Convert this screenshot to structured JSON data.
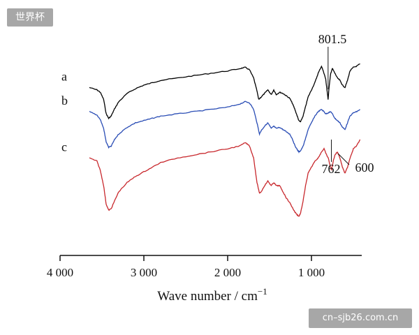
{
  "watermark_top": "世界杯",
  "watermark_bottom": "cn–sjb26.com.cn",
  "chart_data": {
    "type": "line",
    "xlabel": "Wave number / cm",
    "xlabel_sup": "−1",
    "xlim": [
      4000,
      400
    ],
    "x_ticks": [
      4000,
      3000,
      2000,
      1000
    ],
    "x_tick_labels": [
      "4 000",
      "3 000",
      "2 000",
      "1 000"
    ],
    "grid": false,
    "series": [
      {
        "name": "a",
        "color": "#000000",
        "points": [
          [
            3650,
            38
          ],
          [
            3560,
            36
          ],
          [
            3520,
            34
          ],
          [
            3480,
            28
          ],
          [
            3450,
            16
          ],
          [
            3420,
            12
          ],
          [
            3390,
            14
          ],
          [
            3350,
            20
          ],
          [
            3300,
            26
          ],
          [
            3200,
            33
          ],
          [
            3100,
            37
          ],
          [
            3000,
            40
          ],
          [
            2900,
            42
          ],
          [
            2800,
            44
          ],
          [
            2600,
            46
          ],
          [
            2400,
            48
          ],
          [
            2200,
            50
          ],
          [
            2000,
            52
          ],
          [
            1850,
            54
          ],
          [
            1790,
            55
          ],
          [
            1740,
            53
          ],
          [
            1690,
            46
          ],
          [
            1650,
            35
          ],
          [
            1630,
            28
          ],
          [
            1600,
            30
          ],
          [
            1560,
            33
          ],
          [
            1520,
            36
          ],
          [
            1480,
            32
          ],
          [
            1450,
            36
          ],
          [
            1420,
            32
          ],
          [
            1380,
            34
          ],
          [
            1340,
            33
          ],
          [
            1300,
            31
          ],
          [
            1260,
            29
          ],
          [
            1230,
            25
          ],
          [
            1200,
            20
          ],
          [
            1170,
            14
          ],
          [
            1150,
            10
          ],
          [
            1130,
            9
          ],
          [
            1100,
            14
          ],
          [
            1070,
            22
          ],
          [
            1040,
            30
          ],
          [
            1000,
            36
          ],
          [
            960,
            42
          ],
          [
            920,
            50
          ],
          [
            880,
            56
          ],
          [
            850,
            50
          ],
          [
            830,
            45
          ],
          [
            815,
            36
          ],
          [
            801.5,
            28
          ],
          [
            790,
            38
          ],
          [
            770,
            50
          ],
          [
            750,
            54
          ],
          [
            720,
            50
          ],
          [
            690,
            46
          ],
          [
            660,
            44
          ],
          [
            630,
            40
          ],
          [
            600,
            38
          ],
          [
            570,
            44
          ],
          [
            540,
            52
          ],
          [
            500,
            55
          ],
          [
            460,
            56
          ],
          [
            420,
            58
          ]
        ]
      },
      {
        "name": "b",
        "color": "#2a4db5",
        "points": [
          [
            3650,
            40
          ],
          [
            3560,
            37
          ],
          [
            3520,
            33
          ],
          [
            3480,
            25
          ],
          [
            3450,
            13
          ],
          [
            3420,
            8
          ],
          [
            3390,
            9
          ],
          [
            3350,
            15
          ],
          [
            3300,
            20
          ],
          [
            3200,
            26
          ],
          [
            3100,
            30
          ],
          [
            3000,
            32
          ],
          [
            2900,
            34
          ],
          [
            2800,
            36
          ],
          [
            2600,
            38
          ],
          [
            2400,
            40
          ],
          [
            2200,
            42
          ],
          [
            2000,
            44
          ],
          [
            1850,
            47
          ],
          [
            1790,
            49
          ],
          [
            1740,
            48
          ],
          [
            1690,
            42
          ],
          [
            1650,
            30
          ],
          [
            1620,
            20
          ],
          [
            1600,
            23
          ],
          [
            1560,
            27
          ],
          [
            1520,
            30
          ],
          [
            1480,
            25
          ],
          [
            1450,
            27
          ],
          [
            1420,
            25
          ],
          [
            1380,
            26
          ],
          [
            1340,
            24
          ],
          [
            1300,
            22
          ],
          [
            1260,
            20
          ],
          [
            1230,
            16
          ],
          [
            1200,
            10
          ],
          [
            1170,
            6
          ],
          [
            1150,
            4
          ],
          [
            1130,
            5
          ],
          [
            1100,
            9
          ],
          [
            1070,
            16
          ],
          [
            1040,
            24
          ],
          [
            1000,
            30
          ],
          [
            960,
            36
          ],
          [
            920,
            40
          ],
          [
            880,
            42
          ],
          [
            850,
            40
          ],
          [
            830,
            38
          ],
          [
            800,
            39
          ],
          [
            770,
            40
          ],
          [
            750,
            38
          ],
          [
            720,
            34
          ],
          [
            690,
            32
          ],
          [
            660,
            30
          ],
          [
            630,
            26
          ],
          [
            600,
            24
          ],
          [
            570,
            30
          ],
          [
            540,
            36
          ],
          [
            500,
            39
          ],
          [
            460,
            40
          ],
          [
            420,
            42
          ]
        ]
      },
      {
        "name": "c",
        "color": "#c8282d",
        "points": [
          [
            3650,
            38
          ],
          [
            3560,
            36
          ],
          [
            3520,
            30
          ],
          [
            3480,
            20
          ],
          [
            3450,
            8
          ],
          [
            3420,
            4
          ],
          [
            3390,
            5
          ],
          [
            3350,
            10
          ],
          [
            3300,
            16
          ],
          [
            3200,
            22
          ],
          [
            3100,
            26
          ],
          [
            3000,
            29
          ],
          [
            2900,
            32
          ],
          [
            2800,
            35
          ],
          [
            2600,
            38
          ],
          [
            2400,
            40
          ],
          [
            2200,
            42
          ],
          [
            2000,
            44
          ],
          [
            1850,
            46
          ],
          [
            1790,
            48
          ],
          [
            1740,
            46
          ],
          [
            1690,
            38
          ],
          [
            1650,
            22
          ],
          [
            1620,
            15
          ],
          [
            1600,
            16
          ],
          [
            1560,
            20
          ],
          [
            1520,
            23
          ],
          [
            1480,
            20
          ],
          [
            1450,
            22
          ],
          [
            1420,
            20
          ],
          [
            1380,
            20
          ],
          [
            1340,
            16
          ],
          [
            1300,
            12
          ],
          [
            1260,
            9
          ],
          [
            1230,
            6
          ],
          [
            1200,
            3
          ],
          [
            1170,
            1
          ],
          [
            1150,
            0
          ],
          [
            1130,
            2
          ],
          [
            1100,
            10
          ],
          [
            1070,
            20
          ],
          [
            1040,
            28
          ],
          [
            1000,
            32
          ],
          [
            960,
            36
          ],
          [
            920,
            38
          ],
          [
            880,
            42
          ],
          [
            850,
            44
          ],
          [
            820,
            40
          ],
          [
            800,
            38
          ],
          [
            762,
            30
          ],
          [
            740,
            36
          ],
          [
            720,
            40
          ],
          [
            690,
            42
          ],
          [
            660,
            38
          ],
          [
            630,
            32
          ],
          [
            600,
            28
          ],
          [
            570,
            32
          ],
          [
            540,
            38
          ],
          [
            500,
            44
          ],
          [
            460,
            46
          ],
          [
            420,
            50
          ]
        ]
      }
    ],
    "annotations": [
      {
        "text": "801.5",
        "x": 801.5
      },
      {
        "text": "762",
        "x": 762
      },
      {
        "text": "600",
        "x": 600
      }
    ]
  }
}
